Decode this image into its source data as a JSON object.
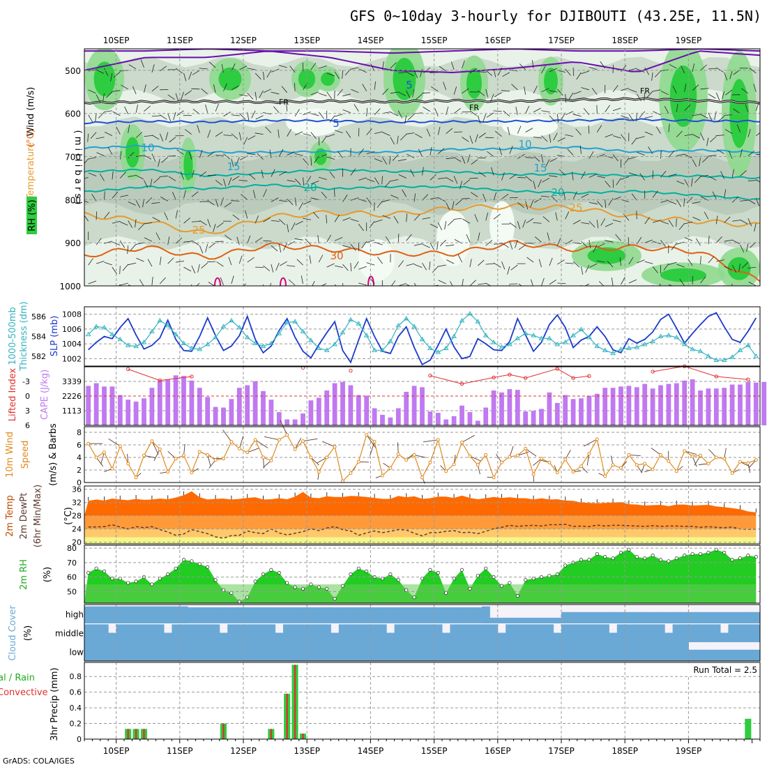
{
  "title": "GFS 0~10day 3-hourly for DJIBOUTI (43.25E, 11.5N)",
  "credit": "GrADS: COLA/IGES",
  "colors": {
    "rh_high": "#2ecc40",
    "rh_mid": "#8fd98f",
    "rh_low": "#c6d6c6",
    "rh_bg": "#e8f2e8",
    "temp_cool": "#6a0dad",
    "temp_blue": "#1f4fd6",
    "temp_light": "#22a0d0",
    "temp_teal": "#00b0a0",
    "temp_orange": "#e69a2e",
    "temp_dark": "#e06010",
    "temp_mag": "#d4007a",
    "slp": "#1a3acb",
    "thick": "#33b3c0",
    "cape": "#c079f0",
    "li": "#e03030",
    "wind": "#e08a1e",
    "t2m_fill": "#ff6a00",
    "t2m_band1": "#ff9a3a",
    "t2m_band2": "#ffc86b",
    "rh2m_fill": "#22cc22",
    "cloud": "#6aa9d6",
    "cloud_clear": "#dcdcdc",
    "precip_total": "#2ecc40",
    "precip_conv": "#e03030"
  },
  "chart_data": [
    {
      "panel": "upper-air",
      "type": "heatmap",
      "ylabel": "(millibars)",
      "legend": [
        "Wind (m/s)",
        "Temperature (°C)",
        "RH (%)"
      ],
      "yticks": [
        500,
        600,
        700,
        800,
        900,
        1000
      ],
      "ylim": [
        450,
        1000
      ],
      "x_ticks": [
        "10SEP",
        "11SEP",
        "12SEP",
        "13SEP",
        "14SEP",
        "15SEP",
        "16SEP",
        "17SEP",
        "18SEP",
        "19SEP"
      ],
      "isotherms": [
        {
          "name": "FR",
          "values": [
            575,
            573,
            572,
            574,
            571,
            573,
            570,
            572,
            568,
            566,
            570,
            575
          ]
        },
        {
          "name": "5",
          "values": [
            622,
            618,
            620,
            616,
            617,
            620,
            619,
            618,
            616,
            614,
            617,
            618
          ]
        },
        {
          "name": "10",
          "values": [
            680,
            675,
            690,
            690,
            688,
            690,
            683,
            682,
            678,
            690,
            685,
            690
          ]
        },
        {
          "name": "15",
          "values": [
            735,
            730,
            745,
            738,
            730,
            735,
            735,
            742,
            740,
            745,
            745,
            750
          ]
        },
        {
          "name": "20",
          "values": [
            782,
            770,
            775,
            765,
            775,
            770,
            770,
            780,
            785,
            780,
            790,
            800
          ]
        },
        {
          "name": "25",
          "values": [
            835,
            850,
            880,
            840,
            830,
            835,
            820,
            815,
            820,
            840,
            850,
            860
          ]
        },
        {
          "name": "30",
          "values": [
            930,
            910,
            935,
            905,
            915,
            925,
            925,
            900,
            915,
            910,
            920,
            990
          ]
        }
      ],
      "contour_labels": [
        "FR",
        "5",
        "10",
        "15",
        "20",
        "25",
        "30"
      ]
    },
    {
      "panel": "slp-thickness",
      "type": "line",
      "ylabel_left": "1000-500mb Thickness (dm)",
      "ylabel_right": "SLP (mb)",
      "yticks_left": [
        582,
        584,
        586
      ],
      "ylim_left": [
        581,
        587
      ],
      "yticks_right": [
        1002,
        1004,
        1006,
        1008
      ],
      "ylim_right": [
        1001,
        1009
      ],
      "series": [
        {
          "name": "SLP",
          "values": [
            1003.2,
            1004.2,
            1005.0,
            1004.7,
            1006.2,
            1007.4,
            1005.2,
            1003.3,
            1003.8,
            1004.8,
            1007.2,
            1004.6,
            1003.1,
            1003.0,
            1005.0,
            1007.5,
            1005.1,
            1003.1,
            1003.7,
            1005.1,
            1007.7,
            1004.6,
            1002.8,
            1003.7,
            1005.8,
            1007.4,
            1004.9,
            1003.0,
            1002.1,
            1003.9,
            1005.5,
            1007.0,
            1003.1,
            1001.5,
            1004.5,
            1007.4,
            1005.0,
            1003.0,
            1002.7,
            1005.0,
            1006.3,
            1003.5,
            1001.2,
            1001.8,
            1003.8,
            1006.0,
            1003.6,
            1002.0,
            1002.3,
            1004.7,
            1004.0,
            1003.2,
            1003.1,
            1004.3,
            1007.4,
            1005.2,
            1003.0,
            1004.2,
            1006.6,
            1007.9,
            1006.2,
            1003.5,
            1004.5,
            1005.0,
            1006.3,
            1005.0,
            1003.2,
            1002.8,
            1004.7,
            1004.1,
            1004.6,
            1005.6,
            1007.3,
            1008.0,
            1006.1,
            1004.1,
            1005.4,
            1006.6,
            1007.7,
            1008.2,
            1006.3,
            1004.6,
            1004.2,
            1005.7,
            1007.5
          ]
        },
        {
          "name": "Thickness",
          "values": [
            584.2,
            585.0,
            584.9,
            584.2,
            583.7,
            583.1,
            583.0,
            583.4,
            584.5,
            585.6,
            585.1,
            584.2,
            583.3,
            582.8,
            582.7,
            583.2,
            583.9,
            585.0,
            585.6,
            584.9,
            583.9,
            583.3,
            583.0,
            583.3,
            584.3,
            585.4,
            585.5,
            584.5,
            583.6,
            582.8,
            582.6,
            583.2,
            584.4,
            585.7,
            585.3,
            584.1,
            582.6,
            582.6,
            583.5,
            585.1,
            585.8,
            585.0,
            583.7,
            582.8,
            582.4,
            582.8,
            584.0,
            585.6,
            586.3,
            585.5,
            584.1,
            583.4,
            582.9,
            583.2,
            583.8,
            584.3,
            584.1,
            583.8,
            583.8,
            583.2,
            583.4,
            584.1,
            584.7,
            583.9,
            583.0,
            582.6,
            582.3,
            582.7,
            582.8,
            582.9,
            583.2,
            583.5,
            584.0,
            584.1,
            583.9,
            583.2,
            582.7,
            582.5,
            582.0,
            581.6,
            581.6,
            581.9,
            582.6,
            583.1,
            582.0
          ]
        }
      ]
    },
    {
      "panel": "li-cape",
      "type": "bar",
      "ylabel_left": "Lifted Index",
      "ylabel_right": "CAPE (J/kg)",
      "yticks_left": [
        -3,
        0,
        3,
        6
      ],
      "ylim_left": [
        -6,
        6
      ],
      "yticks_right": [
        1113,
        2226,
        3339
      ],
      "ylim_right": [
        0,
        4452
      ],
      "series": [
        {
          "name": "CAPE",
          "values": [
            3000,
            3200,
            2950,
            2950,
            2300,
            1950,
            1800,
            2050,
            2850,
            3400,
            3500,
            3800,
            3750,
            3400,
            2850,
            2150,
            1400,
            1350,
            2000,
            2850,
            3050,
            3350,
            2600,
            1950,
            1000,
            450,
            450,
            900,
            1900,
            2100,
            2650,
            3200,
            3300,
            3050,
            2300,
            2250,
            1300,
            800,
            600,
            1300,
            2550,
            3000,
            2900,
            1050,
            950,
            450,
            700,
            1500,
            1000,
            350,
            1350,
            2650,
            2500,
            2750,
            2700,
            1050,
            1100,
            1250,
            2500,
            1700,
            2300,
            2000,
            2050,
            2250,
            2400,
            2850,
            2850,
            2950,
            3000,
            2900,
            3150,
            2800,
            3050,
            3150,
            3200,
            3400,
            3500,
            2650,
            2800,
            2800,
            2850,
            3100,
            3100,
            3300,
            3250,
            3300
          ]
        },
        {
          "name": "Lifted Index",
          "values": [
            -5.5,
            -3.2,
            -4.0,
            -5.8,
            -5.2,
            -4.2,
            -2.5,
            -3.8,
            -4.4,
            -3.7,
            -5.6,
            -3.7,
            -4.1,
            -5.0,
            -6.1,
            -4.0,
            -3.4
          ]
        }
      ]
    },
    {
      "panel": "wind10m",
      "type": "line",
      "ylabel": "10m Wind Speed (m/s) & Barbs",
      "yticks": [
        0,
        2,
        4,
        6,
        8
      ],
      "ylim": [
        0,
        8
      ],
      "series": [
        {
          "name": "speed",
          "values": [
            6.2,
            4.0,
            4.8,
            2.2,
            5.8,
            3.0,
            0.8,
            4.3,
            6.6,
            5.3,
            1.7,
            3.8,
            4.3,
            1.6,
            4.9,
            4.4,
            3.6,
            3.8,
            6.5,
            5.4,
            4.8,
            6.8,
            4.0,
            3.5,
            6.8,
            7.6,
            5.3,
            6.6,
            4.0,
            1.7,
            4.0,
            5.7,
            0.2,
            1.5,
            3.3,
            7.6,
            6.5,
            1.1,
            2.3,
            4.5,
            3.6,
            4.4,
            0.8,
            3.2,
            6.8,
            1.8,
            2.9,
            6.4,
            4.2,
            2.8,
            4.4,
            0.8,
            3.2,
            4.1,
            4.3,
            5.4,
            1.3,
            3.8,
            3.2,
            1.6,
            3.7,
            1.7,
            2.6,
            4.6,
            6.9,
            1.0,
            2.8,
            2.3,
            4.4,
            2.8,
            3.0,
            2.1,
            4.4,
            3.4,
            1.8,
            5.0,
            4.2,
            4.3,
            3.0,
            4.0,
            3.8,
            1.5,
            3.3,
            3.1,
            3.6
          ]
        }
      ]
    },
    {
      "panel": "t2m",
      "type": "area",
      "ylabel": "2m Temp / 2m DewPt (6hr Min/Max) (°C)",
      "yticks": [
        20,
        24,
        28,
        32,
        36
      ],
      "ylim": [
        19.5,
        37
      ],
      "series": [
        {
          "name": "Temp",
          "values": [
            32.5,
            32.9,
            32.6,
            33.2,
            32.9,
            32.7,
            33.1,
            32.8,
            32.9,
            33.2,
            33.0,
            33.5,
            34.2,
            35.4,
            33.6,
            32.9,
            33.1,
            33.2,
            32.9,
            33.1,
            33.4,
            33.6,
            32.9,
            33.0,
            33.3,
            33.0,
            33.8,
            35.2,
            33.5,
            33.3,
            33.9,
            33.7,
            33.7,
            34.0,
            33.9,
            33.7,
            33.4,
            33.1,
            33.1,
            34.0,
            33.6,
            33.9,
            33.1,
            33.3,
            33.8,
            33.8,
            33.4,
            34.1,
            33.4,
            33.0,
            33.3,
            33.7,
            33.4,
            33.6,
            33.3,
            33.3,
            32.9,
            33.3,
            32.9,
            33.0,
            32.6,
            32.5,
            32.0,
            31.9,
            31.8,
            31.9,
            32.0,
            32.1,
            31.5,
            31.4,
            31.1,
            31.2,
            31.3,
            30.9,
            31.4,
            31.4,
            31.1,
            31.2,
            31.3,
            30.8,
            30.6,
            30.3,
            30.0,
            29.3,
            29.0
          ]
        },
        {
          "name": "DewPt",
          "values": [
            24.6,
            24.6,
            24.7,
            25.3,
            24.6,
            24.0,
            24.7,
            24.4,
            24.7,
            23.8,
            23.1,
            22.1,
            22.5,
            23.8,
            23.2,
            22.6,
            21.6,
            21.2,
            22.0,
            22.1,
            23.4,
            22.9,
            22.6,
            24.0,
            22.8,
            22.2,
            22.7,
            23.2,
            24.1,
            23.5,
            24.3,
            24.7,
            23.8,
            23.4,
            22.1,
            22.8,
            23.4,
            22.9,
            23.3,
            23.8,
            23.7,
            22.7,
            21.9,
            22.9,
            22.9,
            23.3,
            23.5,
            22.9,
            23.0,
            22.6,
            23.3,
            24.1,
            24.5,
            25.1,
            24.8,
            25.0,
            25.1,
            24.9,
            25.3,
            25.3,
            25.4,
            24.8,
            24.9,
            24.7,
            25.2,
            24.9,
            25.1,
            25.1,
            25.0,
            24.9,
            24.8,
            25.0,
            24.8,
            24.9,
            24.9,
            24.8,
            24.8,
            24.5,
            24.7,
            24.5,
            24.4,
            24.6,
            24.0,
            23.9,
            24.0
          ]
        }
      ]
    },
    {
      "panel": "rh2m",
      "type": "area",
      "ylabel": "2m RH (%)",
      "yticks": [
        50,
        60,
        70,
        80
      ],
      "ylim": [
        42,
        82
      ],
      "series": [
        {
          "name": "RH",
          "values": [
            63,
            66,
            64,
            59,
            59,
            56,
            57,
            60,
            55,
            59,
            62,
            66,
            72,
            71,
            69,
            67,
            58,
            51,
            49,
            43,
            46,
            57,
            62,
            65,
            63,
            56,
            53,
            52,
            55,
            53,
            52,
            45,
            54,
            62,
            66,
            64,
            60,
            59,
            62,
            58,
            51,
            46,
            59,
            65,
            63,
            49,
            59,
            65,
            52,
            61,
            66,
            60,
            54,
            56,
            47,
            58,
            59,
            60,
            61,
            62,
            68,
            70,
            72,
            72,
            76,
            74,
            73,
            77,
            79,
            74,
            73,
            75,
            72,
            71,
            73,
            75,
            76,
            76,
            77,
            79,
            77,
            72,
            73,
            75,
            74
          ]
        }
      ]
    },
    {
      "panel": "cloud",
      "type": "heatmap",
      "ylabel": "Cloud Cover (%)",
      "levels": [
        "high",
        "middle",
        "low"
      ]
    },
    {
      "panel": "precip",
      "type": "bar",
      "ylabel": "3hr Precip (mm)",
      "legend": [
        "Total / Rain",
        "Convective"
      ],
      "yticks": [
        0,
        0.2,
        0.4,
        0.6,
        0.8
      ],
      "ylim": [
        0,
        0.98
      ],
      "annotation": "Run Total = 2.5",
      "x_ticks": [
        "10SEP",
        "11SEP",
        "12SEP",
        "13SEP",
        "14SEP",
        "15SEP",
        "16SEP",
        "17SEP",
        "18SEP",
        "19SEP"
      ],
      "series": [
        {
          "name": "Total / Rain",
          "values": [
            0.13,
            0.13,
            0.13,
            0.2,
            0.13,
            0.58,
            0.95,
            0.07,
            0.26
          ]
        },
        {
          "name": "Convective",
          "values": [
            0.13,
            0.13,
            0.13,
            0.2,
            0.13,
            0.58,
            0.95,
            0.07,
            0.0
          ]
        }
      ]
    }
  ]
}
